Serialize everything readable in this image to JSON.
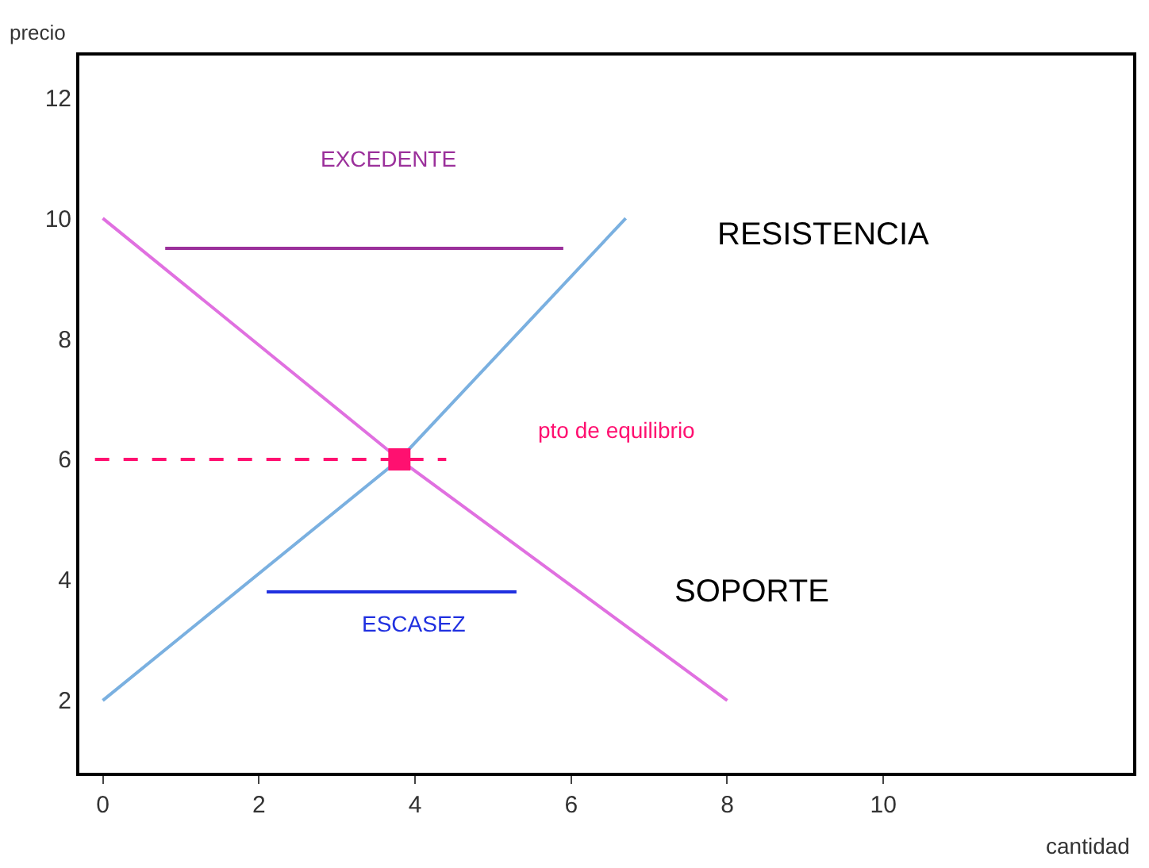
{
  "chart_data": {
    "type": "line",
    "xlabel": "cantidad",
    "ylabel": "precio",
    "xlim": [
      -0.3,
      13.2
    ],
    "ylim": [
      0.8,
      12.7
    ],
    "xticks": [
      0,
      2,
      4,
      6,
      8,
      10
    ],
    "yticks": [
      2,
      4,
      6,
      8,
      10,
      12
    ],
    "series": [
      {
        "color": "#e070e0",
        "x": [
          0,
          3.8,
          8
        ],
        "values": [
          10,
          6,
          2
        ],
        "marker": "none",
        "line_style": "solid"
      },
      {
        "color": "#7ab0e0",
        "x": [
          0,
          3.8,
          6.7
        ],
        "values": [
          2,
          6,
          10
        ],
        "marker": "none",
        "line_style": "solid"
      },
      {
        "color": "#9b309b",
        "x": [
          0.8,
          5.9
        ],
        "values": [
          9.5,
          9.5
        ],
        "marker": "none",
        "line_style": "solid"
      },
      {
        "color": "#2030e0",
        "x": [
          2.1,
          5.3
        ],
        "values": [
          3.8,
          3.8
        ],
        "marker": "none",
        "line_style": "solid"
      },
      {
        "color": "#ff1070",
        "x": [
          -0.1,
          4.4
        ],
        "values": [
          6,
          6
        ],
        "marker": "none",
        "line_style": "dashed"
      },
      {
        "type": "scatter",
        "color": "#ff1070",
        "x": [
          3.8
        ],
        "values": [
          6
        ],
        "marker": "square"
      }
    ],
    "annotations": [
      "EXCEDENTE",
      "RESISTENCIA",
      "pto de equilibrio",
      "SOPORTE",
      "ESCASEZ"
    ]
  }
}
